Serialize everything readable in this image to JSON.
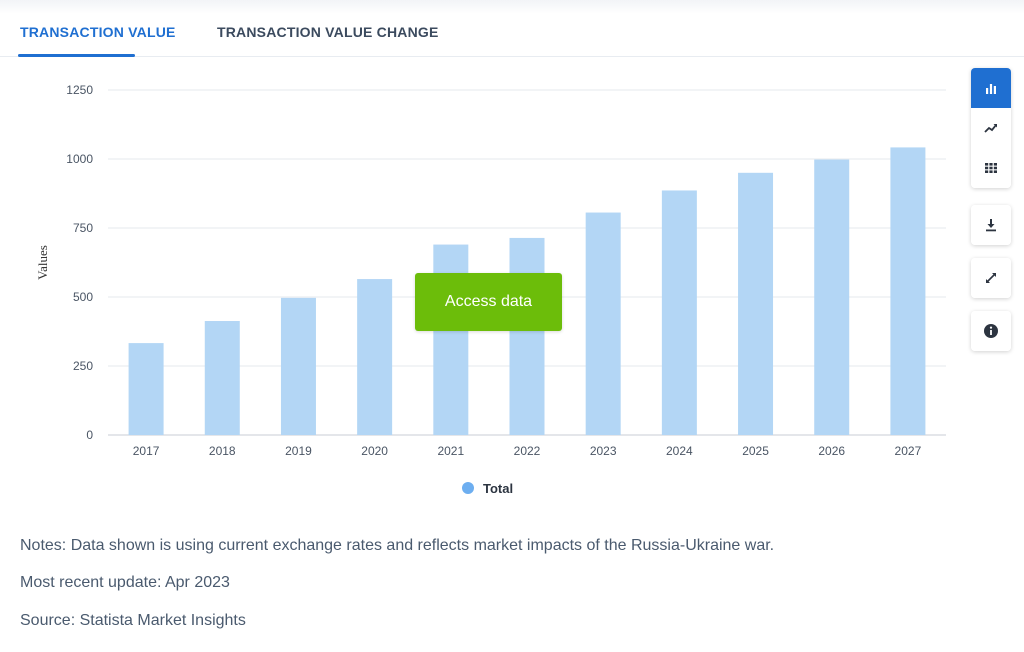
{
  "tabs": [
    {
      "label": "TRANSACTION VALUE",
      "active": true
    },
    {
      "label": "TRANSACTION VALUE CHANGE",
      "active": false
    }
  ],
  "chart_data": {
    "type": "bar",
    "categories": [
      "2017",
      "2018",
      "2019",
      "2020",
      "2021",
      "2022",
      "2023",
      "2024",
      "2025",
      "2026",
      "2027"
    ],
    "series": [
      {
        "name": "Total",
        "values": [
          333,
          413,
          497,
          565,
          690,
          714,
          806,
          886,
          950,
          998,
          1042
        ]
      }
    ],
    "ylabel": "Values",
    "xlabel": "",
    "ylim": [
      0,
      1250
    ],
    "yticks": [
      0,
      250,
      500,
      750,
      1000,
      1250
    ],
    "grid": true,
    "legend": "bottom-center",
    "bar_color": "#b3d6f5"
  },
  "overlay": {
    "access_label": "Access data",
    "color": "#6cbd0a"
  },
  "toolbar": {
    "buttons": [
      {
        "icon": "bar-chart-icon",
        "active": true
      },
      {
        "icon": "line-chart-icon",
        "active": false
      },
      {
        "icon": "table-icon",
        "active": false
      },
      {
        "icon": "download-icon",
        "active": false
      },
      {
        "icon": "fullscreen-icon",
        "active": false
      },
      {
        "icon": "info-icon",
        "active": false
      }
    ]
  },
  "notes": {
    "notes_text": "Notes: Data shown is using current exchange rates and reflects market impacts of the Russia-Ukraine war.",
    "update_text": "Most recent update: Apr 2023",
    "source_text": "Source: Statista Market Insights"
  },
  "accent_color": "#1f6fd1"
}
